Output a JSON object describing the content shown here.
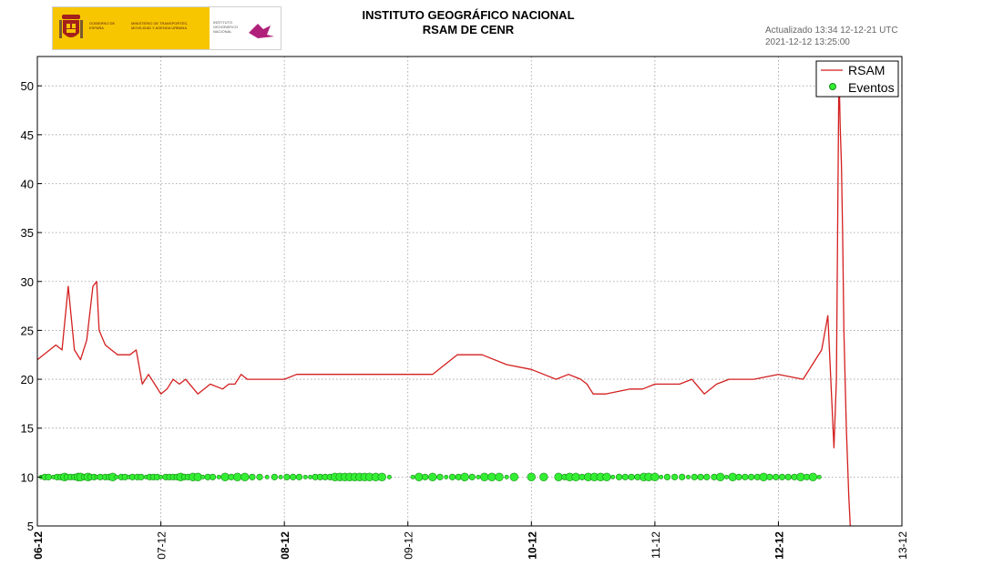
{
  "header": {
    "title": "INSTITUTO GEOGRÁFICO NACIONAL",
    "subtitle": "RSAM DE CENR",
    "updated": "Actualizado 13:34 12-12-21 UTC",
    "timestamp": "2021-12-12 13:25:00"
  },
  "logo": {
    "government": "GOBIERNO DE ESPAÑA",
    "ministry": "MINISTERIO DE TRANSPORTES, MOVILIDAD Y AGENDA URBANA",
    "institute": "INSTITUTO GEOGRÁFICO NACIONAL",
    "colors": {
      "background": "#f7c600",
      "crest": "#a3201c",
      "ign_mark": "#b0207a"
    }
  },
  "chart_data": {
    "type": "line",
    "title": "RSAM DE CENR",
    "xlabel": "",
    "ylabel": "",
    "xlim": [
      0,
      7
    ],
    "ylim": [
      5,
      53
    ],
    "grid": true,
    "legend_position": "top-right",
    "x_tick_values": [
      0,
      1,
      2,
      3,
      4,
      5,
      6,
      7
    ],
    "x_tick_labels": [
      "06-12",
      "07-12",
      "08-12",
      "09-12",
      "10-12",
      "11-12",
      "12-12",
      "13-12"
    ],
    "x_tick_bold": [
      true,
      false,
      true,
      false,
      true,
      false,
      true,
      false
    ],
    "y_ticks": [
      5,
      10,
      15,
      20,
      25,
      30,
      35,
      40,
      45,
      50
    ],
    "series": [
      {
        "name": "RSAM",
        "color": "#d41f1f",
        "x": [
          0,
          0.05,
          0.1,
          0.15,
          0.2,
          0.25,
          0.3,
          0.35,
          0.4,
          0.45,
          0.48,
          0.5,
          0.55,
          0.6,
          0.65,
          0.7,
          0.75,
          0.8,
          0.85,
          0.9,
          0.95,
          1.0,
          1.05,
          1.1,
          1.15,
          1.2,
          1.3,
          1.4,
          1.5,
          1.55,
          1.6,
          1.65,
          1.7,
          1.8,
          1.9,
          2.0,
          2.1,
          2.2,
          2.3,
          2.4,
          2.5,
          2.6,
          2.8,
          3.0,
          3.2,
          3.4,
          3.6,
          3.8,
          4.0,
          4.1,
          4.2,
          4.3,
          4.4,
          4.45,
          4.5,
          4.6,
          4.8,
          4.9,
          5.0,
          5.1,
          5.2,
          5.3,
          5.4,
          5.5,
          5.6,
          5.8,
          6.0,
          6.2,
          6.35,
          6.4,
          6.45,
          6.47,
          6.49,
          6.5,
          6.51,
          6.52,
          6.53,
          6.55,
          6.57,
          6.59
        ],
        "y": [
          22,
          22.5,
          23,
          23.5,
          23,
          29.5,
          23,
          22,
          24,
          29.5,
          30,
          25,
          23.5,
          23,
          22.5,
          22.5,
          22.5,
          23,
          19.5,
          20.5,
          19.5,
          18.5,
          19,
          20,
          19.5,
          20,
          18.5,
          19.5,
          19,
          19.5,
          19.5,
          20.5,
          20,
          20,
          20,
          20,
          20.5,
          20.5,
          20.5,
          20.5,
          20.5,
          20.5,
          20.5,
          20.5,
          20.5,
          22.5,
          22.5,
          21.5,
          21,
          20.5,
          20,
          20.5,
          20,
          19.5,
          18.5,
          18.5,
          19,
          19,
          19.5,
          19.5,
          19.5,
          20,
          18.5,
          19.5,
          20,
          20,
          20.5,
          20,
          23,
          26.5,
          13,
          20,
          52,
          46,
          42,
          35,
          25,
          15,
          8,
          3
        ]
      },
      {
        "name": "Eventos",
        "color": "#33ee33",
        "y_constant": 10,
        "events_x": [
          0.03,
          0.06,
          0.09,
          0.13,
          0.16,
          0.19,
          0.22,
          0.24,
          0.27,
          0.3,
          0.33,
          0.35,
          0.38,
          0.41,
          0.43,
          0.46,
          0.48,
          0.51,
          0.55,
          0.58,
          0.61,
          0.64,
          0.68,
          0.71,
          0.74,
          0.77,
          0.81,
          0.84,
          0.88,
          0.91,
          0.94,
          0.97,
          1.0,
          1.04,
          1.07,
          1.1,
          1.13,
          1.16,
          1.19,
          1.22,
          1.26,
          1.3,
          1.34,
          1.38,
          1.42,
          1.47,
          1.52,
          1.57,
          1.62,
          1.68,
          1.74,
          1.8,
          1.86,
          1.92,
          1.97,
          2.02,
          2.07,
          2.12,
          2.17,
          2.21,
          2.25,
          2.29,
          2.33,
          2.37,
          2.41,
          2.45,
          2.49,
          2.53,
          2.57,
          2.61,
          2.65,
          2.69,
          2.74,
          2.79,
          2.85,
          3.04,
          3.09,
          3.14,
          3.2,
          3.26,
          3.31,
          3.36,
          3.41,
          3.46,
          3.52,
          3.57,
          3.62,
          3.68,
          3.74,
          3.8,
          3.86,
          4.0,
          4.1,
          4.22,
          4.27,
          4.31,
          4.36,
          4.41,
          4.46,
          4.51,
          4.56,
          4.61,
          4.66,
          4.71,
          4.76,
          4.81,
          4.86,
          4.91,
          4.95,
          5.0,
          5.05,
          5.1,
          5.16,
          5.22,
          5.27,
          5.32,
          5.37,
          5.42,
          5.48,
          5.53,
          5.58,
          5.63,
          5.68,
          5.73,
          5.78,
          5.83,
          5.88,
          5.93,
          5.98,
          6.03,
          6.08,
          6.13,
          6.18,
          6.23,
          6.28,
          6.33
        ],
        "events_size": [
          1,
          2,
          2,
          1,
          2,
          2,
          3,
          2,
          2,
          2,
          3,
          3,
          2,
          3,
          2,
          2,
          1,
          2,
          2,
          2,
          3,
          1,
          2,
          2,
          1,
          2,
          2,
          2,
          1,
          2,
          2,
          2,
          1,
          2,
          2,
          2,
          2,
          3,
          2,
          2,
          3,
          3,
          1,
          2,
          2,
          1,
          3,
          2,
          3,
          3,
          2,
          2,
          1,
          2,
          1,
          2,
          2,
          2,
          1,
          1,
          2,
          2,
          2,
          2,
          3,
          3,
          3,
          3,
          3,
          3,
          3,
          3,
          3,
          3,
          1,
          1,
          3,
          2,
          3,
          2,
          1,
          2,
          2,
          3,
          2,
          1,
          3,
          3,
          3,
          1,
          3,
          3,
          3,
          3,
          2,
          3,
          3,
          2,
          3,
          3,
          3,
          3,
          1,
          2,
          2,
          2,
          2,
          3,
          3,
          3,
          1,
          2,
          2,
          2,
          1,
          2,
          2,
          2,
          2,
          3,
          1,
          3,
          2,
          2,
          2,
          2,
          3,
          2,
          2,
          2,
          2,
          2,
          3,
          2,
          3,
          1
        ]
      }
    ],
    "legend": [
      "RSAM",
      "Eventos"
    ]
  }
}
